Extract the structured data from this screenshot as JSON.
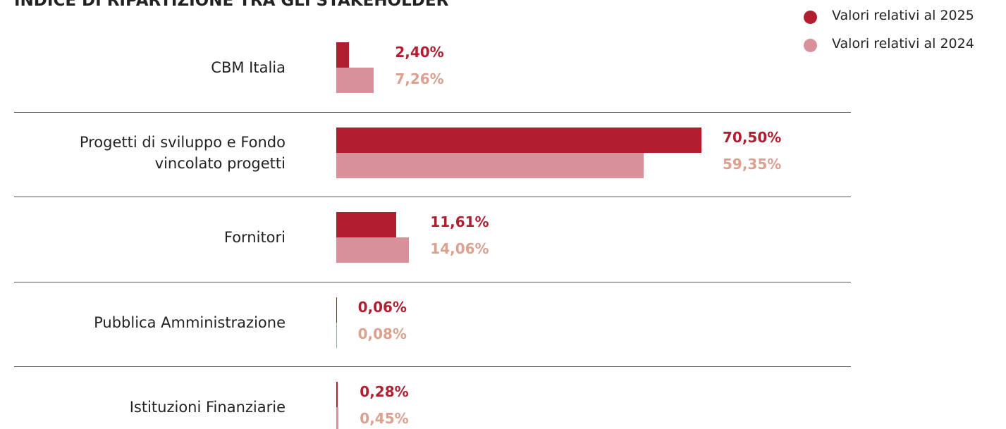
{
  "chart_data": {
    "type": "bar",
    "orientation": "horizontal",
    "title": "INDICE DI RIPARTIZIONE TRA GLI STAKEHOLDER",
    "categories": [
      "CBM Italia",
      "Progetti di sviluppo e Fondo vincolato progetti",
      "Fornitori",
      "Pubblica Amministrazione",
      "Istituzioni Finanziarie"
    ],
    "series": [
      {
        "name": "Valori relativi al 2025",
        "color": "#b01e30",
        "values": [
          2.4,
          70.5,
          11.61,
          0.06,
          0.28
        ],
        "value_labels": [
          "2,40%",
          "70,50%",
          "11,61%",
          "0,06%",
          "0,28%"
        ]
      },
      {
        "name": "Valori relativi al 2024",
        "color": "#d8909a",
        "values": [
          7.26,
          59.35,
          14.06,
          0.08,
          0.45
        ],
        "value_labels": [
          "7,26%",
          "59,35%",
          "14,06%",
          "0,08%",
          "0,45%"
        ]
      }
    ],
    "legend": "top-right"
  }
}
